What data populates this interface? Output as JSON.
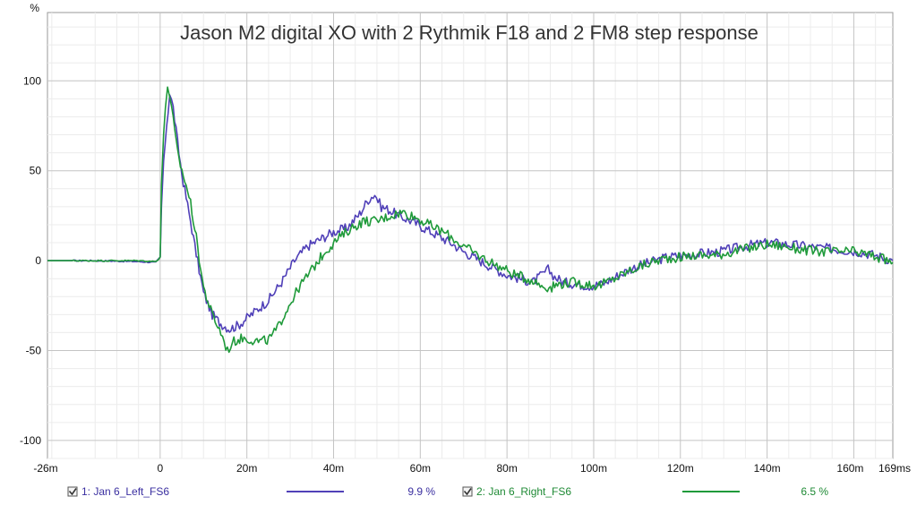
{
  "chart_data": {
    "type": "line",
    "title": "Jason M2 digital XO with 2 Rythmik F18 and 2 FM8 step response",
    "ylabel": "%",
    "xunit_label": "ms",
    "xlim": [
      -26,
      169
    ],
    "ylim": [
      -110,
      138
    ],
    "y_ticks": [
      100,
      50,
      0,
      -50,
      -100
    ],
    "y_tick_labels": [
      "100",
      "50",
      "0",
      "-50",
      "-100"
    ],
    "x_ticks": [
      -26,
      0,
      20,
      40,
      60,
      80,
      100,
      120,
      140,
      160,
      169
    ],
    "x_tick_labels": [
      "-26m",
      "0",
      "20m",
      "40m",
      "60m",
      "80m",
      "100m",
      "120m",
      "140m",
      "160m",
      "169ms"
    ],
    "grid": true,
    "legend_position": "bottom",
    "series": [
      {
        "name": "1: Jan 6_Left_FS6",
        "color": "#5040b8",
        "value_label": "9.9 %",
        "x": [
          -26,
          -15,
          -5,
          -1,
          0,
          0.3,
          0.8,
          1.5,
          2.2,
          3,
          4,
          5,
          6,
          7,
          8,
          10,
          12,
          14,
          16,
          18,
          20,
          22,
          25,
          28,
          31,
          34,
          37,
          40,
          43,
          46,
          48,
          49.5,
          51,
          53,
          55,
          58,
          61,
          64,
          67,
          70,
          73,
          76,
          80,
          83,
          86,
          88,
          89.5,
          91,
          93,
          96,
          99,
          102,
          105,
          109,
          113,
          117,
          121,
          125,
          129,
          133,
          137,
          141,
          145,
          149,
          153,
          157,
          161,
          165,
          169
        ],
        "y": [
          0,
          0,
          -0.5,
          -1,
          2,
          30,
          55,
          75,
          93,
          85,
          66,
          48,
          35,
          22,
          8,
          -18,
          -30,
          -35,
          -38,
          -36,
          -32,
          -28,
          -22,
          -12,
          0,
          8,
          12,
          16,
          18,
          26,
          34,
          37,
          30,
          28,
          25,
          22,
          18,
          14,
          10,
          5,
          1,
          -3,
          -8,
          -10,
          -12,
          -8,
          -5,
          -9,
          -12,
          -13,
          -14,
          -13,
          -9,
          -4,
          -1,
          2,
          3,
          4,
          5,
          7,
          9,
          10,
          9,
          8,
          7,
          6,
          5,
          3,
          0
        ]
      },
      {
        "name": "2: Jan 6_Right_FS6",
        "color": "#1f9a3a",
        "value_label": "6.5 %",
        "x": [
          -26,
          -15,
          -5,
          -1,
          0,
          0.3,
          0.8,
          1.2,
          1.7,
          2.2,
          3,
          4,
          5,
          6,
          7,
          8,
          10,
          12,
          14,
          15.5,
          17,
          19,
          21,
          23,
          25,
          27,
          29,
          32,
          35,
          38,
          41,
          44,
          47,
          50,
          53,
          56,
          59,
          62,
          66,
          70,
          74,
          78,
          82,
          86,
          88,
          90,
          92,
          95,
          98,
          101,
          104,
          108,
          112,
          116,
          120,
          124,
          128,
          132,
          136,
          140,
          144,
          148,
          152,
          156,
          160,
          164,
          169
        ],
        "y": [
          0,
          0,
          0,
          -0.5,
          2,
          42,
          70,
          85,
          98,
          92,
          78,
          60,
          50,
          42,
          32,
          18,
          -15,
          -30,
          -40,
          -50,
          -45,
          -43,
          -44,
          -45,
          -44,
          -38,
          -28,
          -15,
          -5,
          5,
          12,
          18,
          22,
          22,
          25,
          27,
          24,
          20,
          15,
          8,
          2,
          -3,
          -8,
          -11,
          -14,
          -15,
          -13,
          -12,
          -13,
          -14,
          -11,
          -6,
          -2,
          1,
          2,
          3,
          3,
          5,
          7,
          9,
          8,
          6,
          5,
          5,
          5,
          3,
          -1
        ]
      }
    ]
  }
}
